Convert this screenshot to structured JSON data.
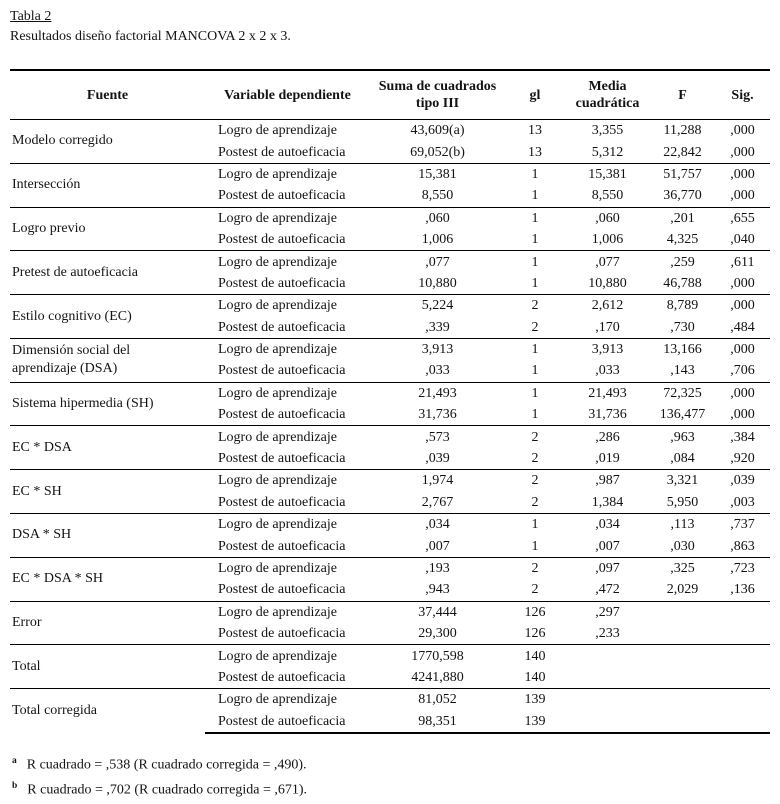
{
  "title": "Tabla 2",
  "subtitle": "Resultados diseño factorial MANCOVA 2 x 2 x 3.",
  "table": {
    "columns": [
      "Fuente",
      "Variable dependiente",
      "Suma de cuadrados tipo III",
      "gl",
      "Media cuadrática",
      "F",
      "Sig."
    ],
    "groups": [
      {
        "fuente": "Modelo corregido",
        "rows": [
          {
            "vd": "Logro de aprendizaje",
            "sc": "43,609(a)",
            "gl": "13",
            "mc": "3,355",
            "f": "11,288",
            "sig": ",000"
          },
          {
            "vd": "Postest de autoeficacia",
            "sc": "69,052(b)",
            "gl": "13",
            "mc": "5,312",
            "f": "22,842",
            "sig": ",000"
          }
        ]
      },
      {
        "fuente": "Intersección",
        "rows": [
          {
            "vd": "Logro de aprendizaje",
            "sc": "15,381",
            "gl": "1",
            "mc": "15,381",
            "f": "51,757",
            "sig": ",000"
          },
          {
            "vd": "Postest de autoeficacia",
            "sc": "8,550",
            "gl": "1",
            "mc": "8,550",
            "f": "36,770",
            "sig": ",000"
          }
        ]
      },
      {
        "fuente": "Logro previo",
        "rows": [
          {
            "vd": "Logro de aprendizaje",
            "sc": ",060",
            "gl": "1",
            "mc": ",060",
            "f": ",201",
            "sig": ",655"
          },
          {
            "vd": "Postest de autoeficacia",
            "sc": "1,006",
            "gl": "1",
            "mc": "1,006",
            "f": "4,325",
            "sig": ",040"
          }
        ]
      },
      {
        "fuente": "Pretest de autoeficacia",
        "rows": [
          {
            "vd": "Logro de aprendizaje",
            "sc": ",077",
            "gl": "1",
            "mc": ",077",
            "f": ",259",
            "sig": ",611"
          },
          {
            "vd": "Postest de autoeficacia",
            "sc": "10,880",
            "gl": "1",
            "mc": "10,880",
            "f": "46,788",
            "sig": ",000"
          }
        ]
      },
      {
        "fuente": "Estilo cognitivo (EC)",
        "rows": [
          {
            "vd": "Logro de aprendizaje",
            "sc": "5,224",
            "gl": "2",
            "mc": "2,612",
            "f": "8,789",
            "sig": ",000"
          },
          {
            "vd": "Postest de autoeficacia",
            "sc": ",339",
            "gl": "2",
            "mc": ",170",
            "f": ",730",
            "sig": ",484"
          }
        ]
      },
      {
        "fuente": "Dimensión social del aprendizaje (DSA)",
        "rows": [
          {
            "vd": "Logro de aprendizaje",
            "sc": "3,913",
            "gl": "1",
            "mc": "3,913",
            "f": "13,166",
            "sig": ",000"
          },
          {
            "vd": "Postest de autoeficacia",
            "sc": ",033",
            "gl": "1",
            "mc": ",033",
            "f": ",143",
            "sig": ",706"
          }
        ]
      },
      {
        "fuente": "Sistema hipermedia (SH)",
        "rows": [
          {
            "vd": "Logro de aprendizaje",
            "sc": "21,493",
            "gl": "1",
            "mc": "21,493",
            "f": "72,325",
            "sig": ",000"
          },
          {
            "vd": "Postest de autoeficacia",
            "sc": "31,736",
            "gl": "1",
            "mc": "31,736",
            "f": "136,477",
            "sig": ",000"
          }
        ]
      },
      {
        "fuente": "EC * DSA",
        "rows": [
          {
            "vd": "Logro de aprendizaje",
            "sc": ",573",
            "gl": "2",
            "mc": ",286",
            "f": ",963",
            "sig": ",384"
          },
          {
            "vd": "Postest de autoeficacia",
            "sc": ",039",
            "gl": "2",
            "mc": ",019",
            "f": ",084",
            "sig": ",920"
          }
        ]
      },
      {
        "fuente": "EC * SH",
        "rows": [
          {
            "vd": "Logro de aprendizaje",
            "sc": "1,974",
            "gl": "2",
            "mc": ",987",
            "f": "3,321",
            "sig": ",039"
          },
          {
            "vd": "Postest de autoeficacia",
            "sc": "2,767",
            "gl": "2",
            "mc": "1,384",
            "f": "5,950",
            "sig": ",003"
          }
        ]
      },
      {
        "fuente": "DSA * SH",
        "rows": [
          {
            "vd": "Logro de aprendizaje",
            "sc": ",034",
            "gl": "1",
            "mc": ",034",
            "f": ",113",
            "sig": ",737"
          },
          {
            "vd": "Postest de autoeficacia",
            "sc": ",007",
            "gl": "1",
            "mc": ",007",
            "f": ",030",
            "sig": ",863"
          }
        ]
      },
      {
        "fuente": "EC * DSA * SH",
        "rows": [
          {
            "vd": "Logro de aprendizaje",
            "sc": ",193",
            "gl": "2",
            "mc": ",097",
            "f": ",325",
            "sig": ",723"
          },
          {
            "vd": "Postest de autoeficacia",
            "sc": ",943",
            "gl": "2",
            "mc": ",472",
            "f": "2,029",
            "sig": ",136"
          }
        ]
      },
      {
        "fuente": "Error",
        "rows": [
          {
            "vd": "Logro de aprendizaje",
            "sc": "37,444",
            "gl": "126",
            "mc": ",297",
            "f": "",
            "sig": ""
          },
          {
            "vd": "Postest de autoeficacia",
            "sc": "29,300",
            "gl": "126",
            "mc": ",233",
            "f": "",
            "sig": ""
          }
        ]
      },
      {
        "fuente": "Total",
        "rows": [
          {
            "vd": "Logro de aprendizaje",
            "sc": "1770,598",
            "gl": "140",
            "mc": "",
            "f": "",
            "sig": ""
          },
          {
            "vd": "Postest de autoeficacia",
            "sc": "4241,880",
            "gl": "140",
            "mc": "",
            "f": "",
            "sig": ""
          }
        ]
      },
      {
        "fuente": "Total corregida",
        "rows": [
          {
            "vd": "Logro de aprendizaje",
            "sc": "81,052",
            "gl": "139",
            "mc": "",
            "f": "",
            "sig": ""
          },
          {
            "vd": "Postest de autoeficacia",
            "sc": "98,351",
            "gl": "139",
            "mc": "",
            "f": "",
            "sig": ""
          }
        ]
      }
    ]
  },
  "footnotes": [
    {
      "marker": "a",
      "text": "R cuadrado = ,538 (R cuadrado corregida = ,490)."
    },
    {
      "marker": "b",
      "text": "R cuadrado = ,702 (R cuadrado corregida = ,671)."
    }
  ]
}
